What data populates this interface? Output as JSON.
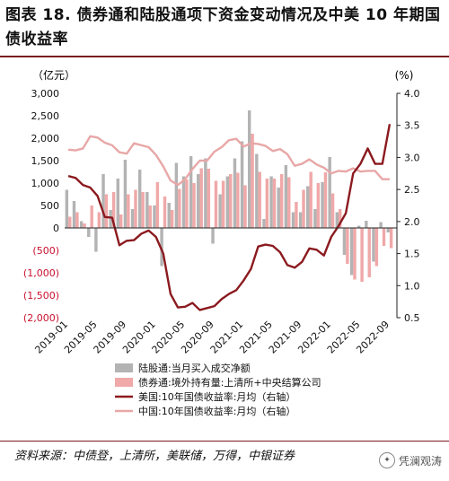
{
  "title": "图表 18. 债券通和陆股通项下资金变动情况及中美 10 年期国债收益率",
  "source": "资料来源：中债登，上清所，美联储，万得，中银证券",
  "brand": {
    "icon": "wechat-icon",
    "text": "凭澜观涛"
  },
  "chart_data": {
    "type": "bar+line",
    "left_axis": {
      "unit_label": "（亿元）",
      "ylim": [
        -2000,
        3000
      ],
      "ticks": [
        3000,
        2500,
        2000,
        1500,
        1000,
        500,
        0,
        -500,
        -1000,
        -1500,
        -2000
      ],
      "tick_labels": [
        "3,000",
        "2,500",
        "2,000",
        "1,500",
        "1,000",
        "500",
        "0",
        "(500)",
        "(1,000)",
        "(1,500)",
        "(2,000)"
      ]
    },
    "right_axis": {
      "unit_label": "(%)",
      "ylim": [
        0.5,
        4.0
      ],
      "ticks": [
        4.0,
        3.5,
        3.0,
        2.5,
        2.0,
        1.5,
        1.0,
        0.5
      ],
      "tick_labels": [
        "4.0",
        "3.5",
        "3.0",
        "2.5",
        "2.0",
        "1.5",
        "1.0",
        "0.5"
      ]
    },
    "x_tick_labels": [
      "2019-01",
      "2019-05",
      "2019-09",
      "2020-01",
      "2020-05",
      "2020-09",
      "2021-01",
      "2021-05",
      "2021-09",
      "2022-01",
      "2022-05",
      "2022-09"
    ],
    "months": [
      "2019-01",
      "2019-02",
      "2019-03",
      "2019-04",
      "2019-05",
      "2019-06",
      "2019-07",
      "2019-08",
      "2019-09",
      "2019-10",
      "2019-11",
      "2019-12",
      "2020-01",
      "2020-02",
      "2020-03",
      "2020-04",
      "2020-05",
      "2020-06",
      "2020-07",
      "2020-08",
      "2020-09",
      "2020-10",
      "2020-11",
      "2020-12",
      "2021-01",
      "2021-02",
      "2021-03",
      "2021-04",
      "2021-05",
      "2021-06",
      "2021-07",
      "2021-08",
      "2021-09",
      "2021-10",
      "2021-11",
      "2021-12",
      "2022-01",
      "2022-02",
      "2022-03",
      "2022-04",
      "2022-05",
      "2022-06",
      "2022-07",
      "2022-08",
      "2022-09"
    ],
    "series": [
      {
        "name": "陆股通:当月买入成交净额",
        "type": "bar",
        "axis": "left",
        "color": "#b3b3b3",
        "values": [
          850,
          600,
          150,
          -200,
          -530,
          1200,
          400,
          1100,
          1520,
          420,
          1300,
          800,
          500,
          -850,
          560,
          1450,
          1150,
          1600,
          1200,
          1550,
          -350,
          750,
          1150,
          1550,
          1930,
          2620,
          1650,
          200,
          1150,
          900,
          1400,
          350,
          350,
          930,
          420,
          1020,
          1580,
          350,
          -600,
          -1050,
          50,
          160,
          -750,
          130,
          -100
        ]
      },
      {
        "name": "债券通:境外持有量:上清所+中央结算公司",
        "type": "bar",
        "axis": "left",
        "color": "#f0a8a8",
        "values": [
          250,
          350,
          100,
          500,
          350,
          750,
          800,
          300,
          750,
          850,
          800,
          500,
          1020,
          700,
          400,
          870,
          1080,
          1000,
          1330,
          1320,
          1050,
          1050,
          1200,
          1230,
          950,
          2100,
          1250,
          1100,
          1100,
          1200,
          1130,
          580,
          850,
          1250,
          1000,
          1240,
          770,
          420,
          -800,
          -1150,
          -1200,
          -1100,
          -850,
          -400,
          -450
        ]
      },
      {
        "name": "美国:10年国债收益率:月均（右轴）",
        "type": "line",
        "axis": "right",
        "color": "#8b1a1f",
        "values": [
          2.71,
          2.68,
          2.57,
          2.53,
          2.4,
          2.07,
          2.06,
          1.63,
          1.7,
          1.71,
          1.81,
          1.86,
          1.76,
          1.5,
          0.87,
          0.66,
          0.67,
          0.73,
          0.62,
          0.65,
          0.68,
          0.79,
          0.87,
          0.93,
          1.08,
          1.26,
          1.61,
          1.64,
          1.62,
          1.52,
          1.32,
          1.28,
          1.37,
          1.58,
          1.56,
          1.47,
          1.76,
          1.93,
          2.13,
          2.75,
          2.9,
          3.14,
          2.9,
          2.9,
          3.52
        ]
      },
      {
        "name": "中国:10年国债收益率:月均（右轴）",
        "type": "line",
        "axis": "right",
        "color": "#e8a7a7",
        "values": [
          3.12,
          3.11,
          3.14,
          3.33,
          3.31,
          3.23,
          3.19,
          3.08,
          3.06,
          3.22,
          3.19,
          3.16,
          3.04,
          2.86,
          2.64,
          2.57,
          2.66,
          2.82,
          2.95,
          2.95,
          3.09,
          3.16,
          3.27,
          3.29,
          3.17,
          3.22,
          3.21,
          3.18,
          3.1,
          3.13,
          3.05,
          2.87,
          2.9,
          2.97,
          2.89,
          2.84,
          2.75,
          2.79,
          2.78,
          2.83,
          2.78,
          2.79,
          2.79,
          2.66,
          2.66
        ]
      }
    ],
    "legend": {
      "position": "bottom-center",
      "entries": [
        {
          "label": "陆股通:当月买入成交净额",
          "kind": "rect",
          "color": "#b3b3b3"
        },
        {
          "label": "债券通:境外持有量:上清所+中央结算公司",
          "kind": "rect",
          "color": "#f0a8a8"
        },
        {
          "label": "美国:10年国债收益率:月均（右轴）",
          "kind": "line",
          "color": "#8b1a1f"
        },
        {
          "label": "中国:10年国债收益率:月均（右轴）",
          "kind": "line",
          "color": "#e8a7a7"
        }
      ]
    },
    "colors": {
      "left_negative_tick": "#c8102e",
      "axis_text": "#111111"
    },
    "grid": false
  }
}
